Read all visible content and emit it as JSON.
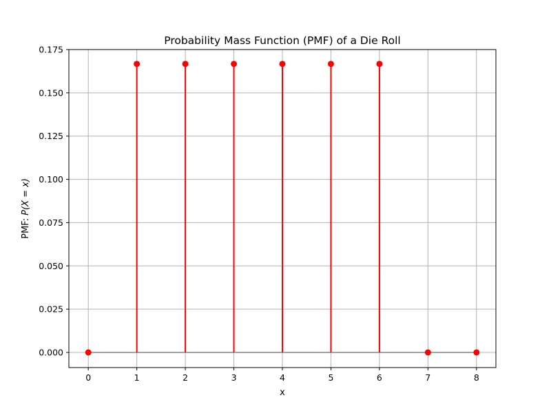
{
  "chart_data": {
    "type": "stem",
    "title": "Probability Mass Function (PMF) of a Die Roll",
    "xlabel": "x",
    "ylabel_prefix": "PMF: ",
    "ylabel_math": "P(X = x)",
    "x": [
      0,
      1,
      2,
      3,
      4,
      5,
      6,
      7,
      8
    ],
    "y": [
      0,
      0.1667,
      0.1667,
      0.1667,
      0.1667,
      0.1667,
      0.1667,
      0,
      0
    ],
    "xlim": [
      -0.4,
      8.4
    ],
    "ylim": [
      -0.00875,
      0.175
    ],
    "xticks": [
      0,
      1,
      2,
      3,
      4,
      5,
      6,
      7,
      8
    ],
    "xtick_labels": [
      "0",
      "1",
      "2",
      "3",
      "4",
      "5",
      "6",
      "7",
      "8"
    ],
    "yticks": [
      0,
      0.025,
      0.05,
      0.075,
      0.1,
      0.125,
      0.15,
      0.175
    ],
    "ytick_labels": [
      "0.000",
      "0.025",
      "0.050",
      "0.075",
      "0.100",
      "0.125",
      "0.150",
      "0.175"
    ],
    "grid": true,
    "colors": {
      "stem": "#ff0000",
      "marker": "#ff0000",
      "baseline": "#808080",
      "grid": "#b0b0b0",
      "axis": "#000000"
    }
  }
}
